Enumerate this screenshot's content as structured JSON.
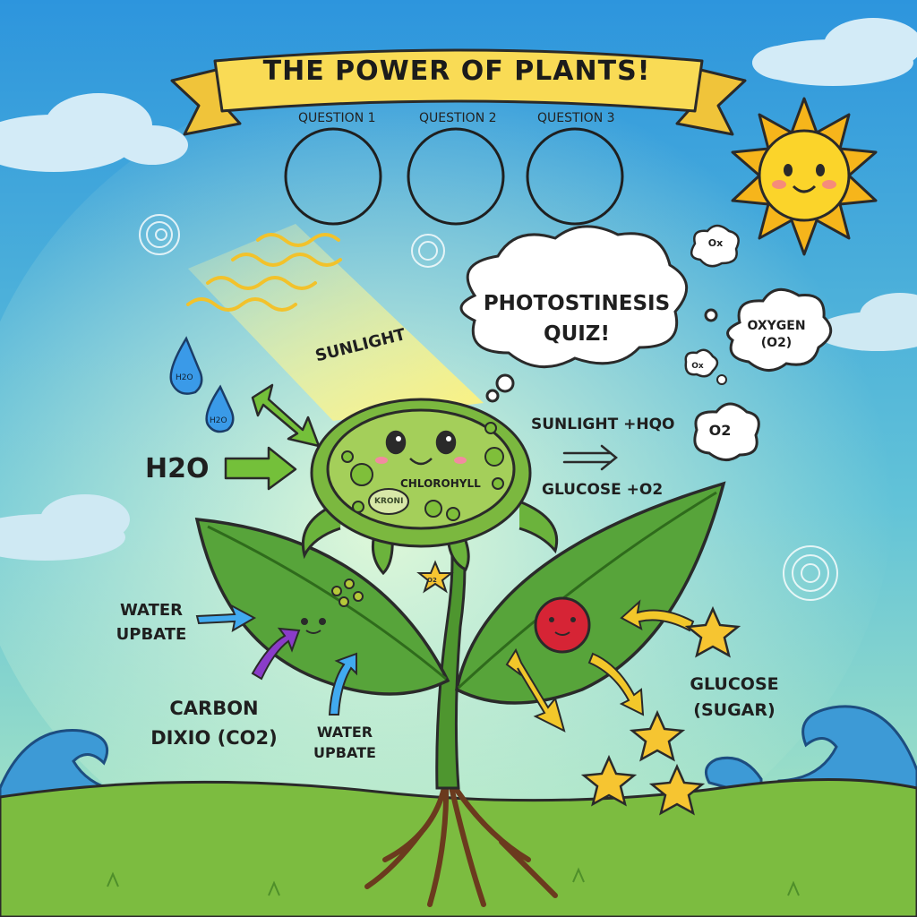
{
  "title": "THE POWER OF PLANTS!",
  "questions": [
    "QUESTION 1",
    "QUESTION 2",
    "QUESTION 3"
  ],
  "thought_bubble": {
    "line1": "PHOTOSTINESIS",
    "line2": "QUIZ!"
  },
  "oxygen_cloud": {
    "line1": "OXYGEN",
    "line2": "(O2)"
  },
  "small_clouds": [
    "Ox",
    "Ox",
    "O2"
  ],
  "sunlight_label": "SUNLIGHT",
  "water_drops": [
    "H2O",
    "H2O"
  ],
  "h2o_label": "H2O",
  "equation": {
    "line1": "SUNLIGHT +HQO",
    "line2": "GLUCOSE +O2"
  },
  "cell_labels": {
    "chlorophyll": "CHLOROHYLL",
    "nucleus": "KRONI"
  },
  "star_small_label": "O2",
  "left_labels": {
    "water_uptake_1": {
      "line1": "WATER",
      "line2": "UPBATE"
    },
    "carbon": {
      "line1": "CARBON",
      "line2": "DIXIO (CO2)"
    },
    "water_uptake_2": {
      "line1": "WATER",
      "line2": "UPBATE"
    }
  },
  "glucose_label": {
    "line1": "GLUCOSE",
    "line2": "(SUGAR)"
  },
  "colors": {
    "sky_top": "#3fa3e0",
    "sky_bottom": "#a8e6c8",
    "banner": "#f7d74a",
    "sun": "#f6c21b",
    "leaf": "#4f9a35",
    "cell": "#8cc34a",
    "ground": "#79b93f",
    "wave": "#3e9ad8",
    "water_drop": "#2f8fe0",
    "arrow_green": "#69b82f",
    "arrow_blue": "#3aa7ea",
    "arrow_purple": "#8a3cc9",
    "arrow_yellow": "#f2c72a",
    "berry": "#d0202e",
    "star": "#f6c531"
  }
}
